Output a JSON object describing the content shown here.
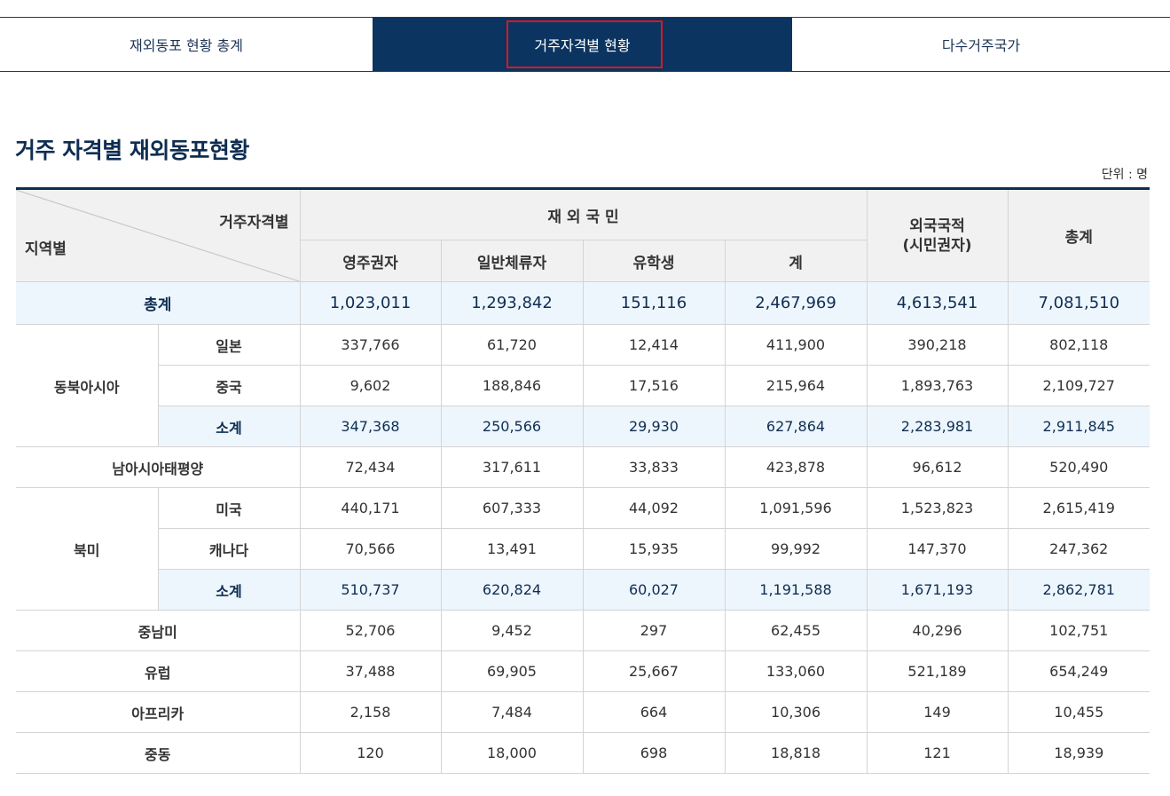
{
  "tabs": [
    {
      "label": "재외동포 현황 총계"
    },
    {
      "label": "거주자격별 현황"
    },
    {
      "label": "다수거주국가"
    }
  ],
  "page_title": "거주 자격별 재외동포현황",
  "unit": "단위 : 명",
  "table": {
    "corner_top": "거주자격별",
    "corner_bottom": "지역별",
    "group_header": "재 외 국 민",
    "foreign_header_line1": "외국국적",
    "foreign_header_line2": "(시민권자)",
    "total_header": "총계",
    "sub_headers": [
      "영주권자",
      "일반체류자",
      "유학생",
      "계"
    ],
    "grand_total": {
      "label": "총계",
      "values": [
        "1,023,011",
        "1,293,842",
        "151,116",
        "2,467,969",
        "4,613,541",
        "7,081,510"
      ]
    },
    "northeast_asia": {
      "label": "동북아시아",
      "rows": [
        {
          "label": "일본",
          "values": [
            "337,766",
            "61,720",
            "12,414",
            "411,900",
            "390,218",
            "802,118"
          ]
        },
        {
          "label": "중국",
          "values": [
            "9,602",
            "188,846",
            "17,516",
            "215,964",
            "1,893,763",
            "2,109,727"
          ]
        },
        {
          "label": "소계",
          "values": [
            "347,368",
            "250,566",
            "29,930",
            "627,864",
            "2,283,981",
            "2,911,845"
          ]
        }
      ]
    },
    "south_asia_pacific": {
      "label": "남아시아태평양",
      "values": [
        "72,434",
        "317,611",
        "33,833",
        "423,878",
        "96,612",
        "520,490"
      ]
    },
    "north_america": {
      "label": "북미",
      "rows": [
        {
          "label": "미국",
          "values": [
            "440,171",
            "607,333",
            "44,092",
            "1,091,596",
            "1,523,823",
            "2,615,419"
          ]
        },
        {
          "label": "캐나다",
          "values": [
            "70,566",
            "13,491",
            "15,935",
            "99,992",
            "147,370",
            "247,362"
          ]
        },
        {
          "label": "소계",
          "values": [
            "510,737",
            "620,824",
            "60,027",
            "1,191,588",
            "1,671,193",
            "2,862,781"
          ]
        }
      ]
    },
    "others": [
      {
        "label": "중남미",
        "values": [
          "52,706",
          "9,452",
          "297",
          "62,455",
          "40,296",
          "102,751"
        ]
      },
      {
        "label": "유럽",
        "values": [
          "37,488",
          "69,905",
          "25,667",
          "133,060",
          "521,189",
          "654,249"
        ]
      },
      {
        "label": "아프리카",
        "values": [
          "2,158",
          "7,484",
          "664",
          "10,306",
          "149",
          "10,455"
        ]
      },
      {
        "label": "중동",
        "values": [
          "120",
          "18,000",
          "698",
          "18,818",
          "121",
          "18,939"
        ]
      }
    ]
  }
}
